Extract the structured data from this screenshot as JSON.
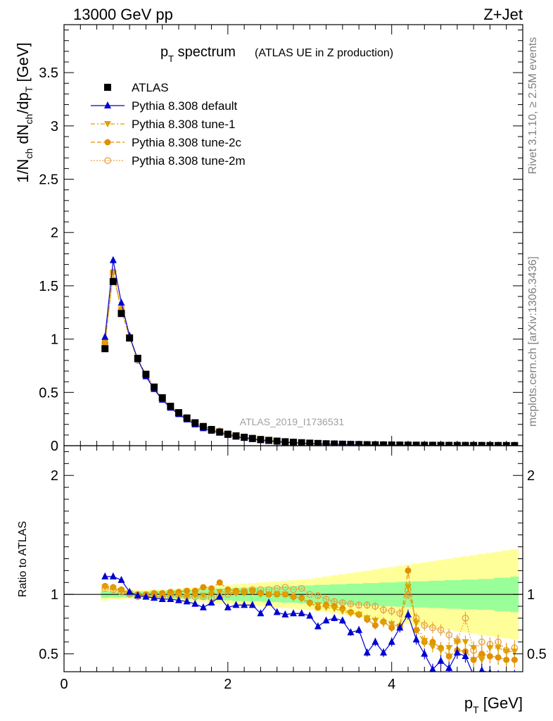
{
  "header": {
    "energy": "13000 GeV pp",
    "process": "Z+Jet"
  },
  "side_labels": {
    "rivet": "Rivet 3.1.10, ≥ 2.5M events",
    "mcplots": "mcplots.cern.ch [arXiv:1306.3436]"
  },
  "chart_data": [
    {
      "type": "scatter",
      "panel": "main",
      "title": "p_T spectrum",
      "title_main": "p",
      "title_sub": "T",
      "title_rest": " spectrum",
      "subtitle": "(ATLAS UE in Z production)",
      "analysis_label": "ATLAS_2019_I1736531",
      "ylabel": "1/N_ch dN_ch/dp_T [GeV]",
      "xlim": [
        0,
        5.6
      ],
      "ylim": [
        0,
        3.95
      ],
      "x_ticks": [
        0,
        2,
        4
      ],
      "y_ticks": [
        0,
        0.5,
        1,
        1.5,
        2,
        2.5,
        3,
        3.5
      ],
      "y_tick_labels": [
        "0",
        "0.5",
        "1",
        "1.5",
        "2",
        "2.5",
        "3",
        "3.5"
      ],
      "legend_position": "top-left",
      "x": [
        0.5,
        0.6,
        0.7,
        0.8,
        0.9,
        1.0,
        1.1,
        1.2,
        1.3,
        1.4,
        1.5,
        1.6,
        1.7,
        1.8,
        1.9,
        2.0,
        2.1,
        2.2,
        2.3,
        2.4,
        2.5,
        2.6,
        2.7,
        2.8,
        2.9,
        3.0,
        3.1,
        3.2,
        3.3,
        3.4,
        3.5,
        3.6,
        3.7,
        3.8,
        3.9,
        4.0,
        4.1,
        4.2,
        4.3,
        4.4,
        4.5,
        4.6,
        4.7,
        4.8,
        4.9,
        5.0,
        5.1,
        5.2,
        5.3,
        5.4,
        5.5
      ],
      "series": [
        {
          "name": "ATLAS",
          "color": "#000000",
          "marker": "square",
          "values": [
            0.91,
            1.54,
            1.24,
            1.01,
            0.82,
            0.67,
            0.55,
            0.45,
            0.37,
            0.31,
            0.26,
            0.215,
            0.18,
            0.152,
            0.128,
            0.108,
            0.092,
            0.079,
            0.068,
            0.058,
            0.05,
            0.043,
            0.037,
            0.032,
            0.028,
            0.024,
            0.021,
            0.018,
            0.016,
            0.014,
            0.012,
            0.011,
            0.0095,
            0.0084,
            0.0074,
            0.0066,
            0.0058,
            0.0052,
            0.0046,
            0.0041,
            0.0037,
            0.0033,
            0.003,
            0.0027,
            0.0024,
            0.0022,
            0.002,
            0.0018,
            0.0016,
            0.0015,
            0.0013
          ]
        },
        {
          "name": "Pythia 8.308 default",
          "color": "#0000d0",
          "marker": "triangle-up",
          "values": [
            1.02,
            1.74,
            1.34,
            1.03,
            0.81,
            0.65,
            0.53,
            0.43,
            0.355,
            0.295,
            0.245,
            0.198,
            0.163,
            0.138,
            0.121,
            0.1,
            0.083,
            0.072,
            0.061,
            0.05,
            0.044,
            0.036,
            0.031,
            0.027,
            0.023,
            0.019,
            0.017,
            0.014,
            0.013,
            0.011,
            0.0093,
            0.0082,
            0.0067,
            0.0062,
            0.0055,
            0.0049,
            0.0045,
            0.0043,
            0.0036,
            0.0032,
            0.0028,
            0.0026,
            0.0024,
            0.0021,
            0.0019,
            0.0017,
            0.0016,
            0.0014,
            0.0013,
            0.0012,
            0.001
          ]
        },
        {
          "name": "Pythia 8.308 tune-1",
          "color": "#e0a000",
          "marker": "triangle-down",
          "values": [
            0.97,
            1.62,
            1.28,
            1.02,
            0.8,
            0.66,
            0.54,
            0.44,
            0.365,
            0.305,
            0.256,
            0.213,
            0.179,
            0.152,
            0.13,
            0.11,
            0.093,
            0.08,
            0.069,
            0.058,
            0.05,
            0.043,
            0.037,
            0.031,
            0.027,
            0.022,
            0.019,
            0.016,
            0.014,
            0.012,
            0.01,
            0.0094,
            0.0079,
            0.0069,
            0.0061,
            0.0054,
            0.0048,
            0.0047,
            0.0039,
            0.0034,
            0.003,
            0.0027,
            0.0024,
            0.0022,
            0.002,
            0.0018,
            0.0016,
            0.0015,
            0.0013,
            0.0012,
            0.0011
          ]
        },
        {
          "name": "Pythia 8.308 tune-2c",
          "color": "#e09000",
          "marker": "circle",
          "values": [
            0.97,
            1.63,
            1.28,
            1.02,
            0.81,
            0.67,
            0.55,
            0.45,
            0.37,
            0.31,
            0.261,
            0.217,
            0.184,
            0.158,
            0.14,
            0.112,
            0.095,
            0.081,
            0.07,
            0.059,
            0.05,
            0.043,
            0.037,
            0.031,
            0.027,
            0.022,
            0.019,
            0.016,
            0.014,
            0.012,
            0.01,
            0.0093,
            0.0078,
            0.0068,
            0.006,
            0.0054,
            0.0048,
            0.0047,
            0.0039,
            0.0034,
            0.003,
            0.0027,
            0.0024,
            0.0022,
            0.002,
            0.0018,
            0.0016,
            0.0015,
            0.0013,
            0.0012,
            0.0011
          ]
        },
        {
          "name": "Pythia 8.308 tune-2m",
          "color": "#e8a040",
          "marker": "open-circle",
          "values": [
            0.96,
            1.6,
            1.27,
            1.01,
            0.8,
            0.66,
            0.54,
            0.44,
            0.365,
            0.305,
            0.255,
            0.21,
            0.176,
            0.148,
            0.126,
            0.108,
            0.094,
            0.081,
            0.07,
            0.06,
            0.052,
            0.045,
            0.039,
            0.033,
            0.029,
            0.024,
            0.021,
            0.017,
            0.015,
            0.013,
            0.011,
            0.0099,
            0.0085,
            0.0075,
            0.0066,
            0.0059,
            0.0052,
            0.0048,
            0.0041,
            0.0036,
            0.0032,
            0.0029,
            0.0026,
            0.0023,
            0.0021,
            0.0019,
            0.0017,
            0.0016,
            0.0014,
            0.0013,
            0.0012
          ]
        }
      ]
    },
    {
      "type": "scatter",
      "panel": "ratio",
      "ylabel": "Ratio to ATLAS",
      "xlabel": "p_T [GeV]",
      "xlabel_main": "p",
      "xlabel_sub": "T",
      "xlabel_rest": " [GeV]",
      "xlim": [
        0,
        5.6
      ],
      "ylim": [
        0.35,
        2.25
      ],
      "x_ticks": [
        0,
        2,
        4
      ],
      "x_tick_labels": [
        "0",
        "2",
        "4"
      ],
      "y_ticks": [
        0.5,
        1,
        2
      ],
      "y_tick_labels": [
        "0.5",
        "1",
        "2"
      ],
      "reference": 1,
      "band_edges": [
        0.45,
        0.55,
        0.65,
        0.75,
        0.85,
        0.95,
        1.05,
        1.15,
        1.25,
        1.35,
        1.45,
        1.55,
        1.65,
        1.75,
        1.85,
        1.95,
        2.05,
        2.15,
        2.25,
        2.35,
        2.45,
        2.55,
        2.65,
        2.75,
        2.85,
        2.95,
        3.05,
        3.15,
        3.25,
        3.35,
        3.45,
        3.55,
        3.65,
        3.75,
        3.85,
        3.95,
        4.05,
        4.15,
        4.25,
        4.35,
        4.45,
        4.55,
        4.65,
        4.75,
        4.85,
        4.95,
        5.05,
        5.15,
        5.25,
        5.35,
        5.45,
        5.55
      ],
      "stat_band_halfwidth": [
        0.03,
        0.025,
        0.025,
        0.025,
        0.025,
        0.025,
        0.03,
        0.03,
        0.035,
        0.035,
        0.04,
        0.04,
        0.045,
        0.045,
        0.05,
        0.05,
        0.055,
        0.055,
        0.06,
        0.06,
        0.065,
        0.065,
        0.07,
        0.07,
        0.075,
        0.075,
        0.08,
        0.08,
        0.085,
        0.085,
        0.09,
        0.09,
        0.095,
        0.095,
        0.1,
        0.1,
        0.105,
        0.105,
        0.11,
        0.11,
        0.115,
        0.115,
        0.12,
        0.12,
        0.125,
        0.125,
        0.13,
        0.13,
        0.14,
        0.14,
        0.15
      ],
      "total_band_halfwidth": [
        0.05,
        0.04,
        0.04,
        0.035,
        0.035,
        0.035,
        0.04,
        0.04,
        0.045,
        0.05,
        0.055,
        0.06,
        0.065,
        0.07,
        0.075,
        0.08,
        0.085,
        0.09,
        0.095,
        0.1,
        0.105,
        0.11,
        0.115,
        0.12,
        0.125,
        0.13,
        0.14,
        0.15,
        0.16,
        0.17,
        0.18,
        0.19,
        0.2,
        0.21,
        0.22,
        0.23,
        0.24,
        0.25,
        0.26,
        0.27,
        0.28,
        0.29,
        0.3,
        0.31,
        0.32,
        0.33,
        0.34,
        0.35,
        0.36,
        0.37,
        0.38
      ],
      "series": [
        {
          "name": "Pythia 8.308 default",
          "color": "#0000d0",
          "marker": "triangle-up",
          "values": [
            1.15,
            1.15,
            1.12,
            1.02,
            0.99,
            0.98,
            0.97,
            0.96,
            0.96,
            0.95,
            0.94,
            0.92,
            0.89,
            0.93,
            0.98,
            0.89,
            0.91,
            0.91,
            0.91,
            0.84,
            0.93,
            0.85,
            0.83,
            0.84,
            0.84,
            0.82,
            0.73,
            0.78,
            0.8,
            0.78,
            0.68,
            0.7,
            0.51,
            0.6,
            0.51,
            0.6,
            0.72,
            0.83,
            0.62,
            0.5,
            0.37,
            0.44,
            0.38,
            0.51,
            0.48,
            0.32,
            0.36,
            0.34,
            0.3,
            0.28,
            0.3
          ]
        },
        {
          "name": "Pythia 8.308 tune-1",
          "color": "#e0a000",
          "marker": "triangle-down",
          "values": [
            1.06,
            1.05,
            1.03,
            1.01,
            0.98,
            0.99,
            0.98,
            0.98,
            0.99,
            0.99,
            0.98,
            0.99,
            0.99,
            1.0,
            1.02,
            1.02,
            1.01,
            1.01,
            1.02,
            1.0,
            1.0,
            1.0,
            1.0,
            0.97,
            0.96,
            0.92,
            0.91,
            0.89,
            0.88,
            0.86,
            0.84,
            0.83,
            0.8,
            0.78,
            0.76,
            0.75,
            0.73,
            1.06,
            0.76,
            0.61,
            0.56,
            0.53,
            0.55,
            0.6,
            0.6,
            0.55,
            0.45,
            0.55,
            0.55,
            0.52,
            0.52
          ]
        },
        {
          "name": "Pythia 8.308 tune-2c",
          "color": "#e09000",
          "marker": "circle",
          "values": [
            1.07,
            1.06,
            1.04,
            1.01,
            1.0,
            1.0,
            1.01,
            1.01,
            1.02,
            1.02,
            1.03,
            1.03,
            1.06,
            1.05,
            1.1,
            1.04,
            1.03,
            1.02,
            1.03,
            1.01,
            1.0,
            1.0,
            1.0,
            0.98,
            0.97,
            0.93,
            0.89,
            0.91,
            0.9,
            0.88,
            0.85,
            0.83,
            0.79,
            0.74,
            0.77,
            0.72,
            0.73,
            1.2,
            0.7,
            0.6,
            0.6,
            0.55,
            0.48,
            0.53,
            0.52,
            0.45,
            0.5,
            0.48,
            0.47,
            0.45,
            0.45
          ]
        },
        {
          "name": "Pythia 8.308 tune-2m",
          "color": "#e8a040",
          "marker": "open-circle",
          "values": [
            1.05,
            1.04,
            1.02,
            1.0,
            0.98,
            0.99,
            0.98,
            0.98,
            0.99,
            0.99,
            0.98,
            0.98,
            0.98,
            0.97,
            0.98,
            1.0,
            1.02,
            1.03,
            1.04,
            1.04,
            1.04,
            1.05,
            1.06,
            1.04,
            1.05,
            1.0,
            0.99,
            0.96,
            0.94,
            0.93,
            0.92,
            0.91,
            0.91,
            0.9,
            0.87,
            0.86,
            0.84,
            1.0,
            0.8,
            0.74,
            0.72,
            0.7,
            0.66,
            0.61,
            0.8,
            0.53,
            0.6,
            0.58,
            0.6,
            0.53,
            0.55
          ]
        }
      ]
    }
  ]
}
